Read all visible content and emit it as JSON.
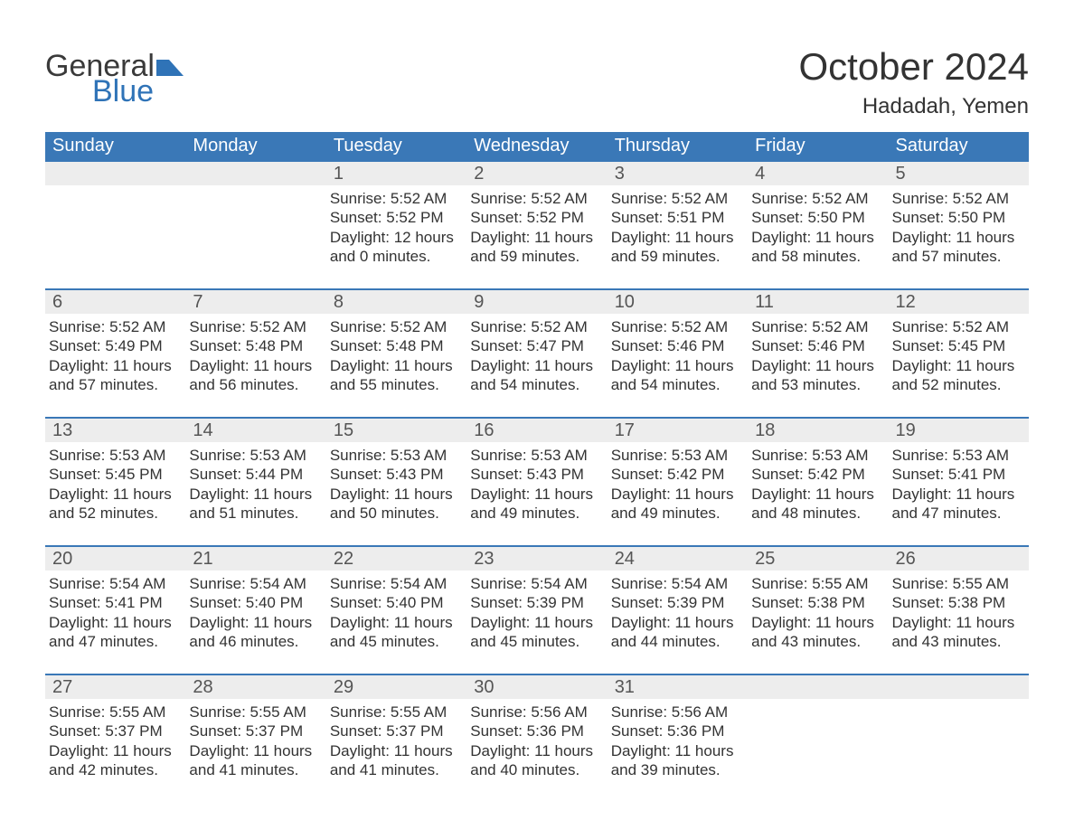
{
  "logo": {
    "text1": "General",
    "text2": "Blue",
    "flag_color": "#2f73b7"
  },
  "title": "October 2024",
  "location": "Hadadah, Yemen",
  "dow": [
    "Sunday",
    "Monday",
    "Tuesday",
    "Wednesday",
    "Thursday",
    "Friday",
    "Saturday"
  ],
  "colors": {
    "header_bg": "#3a78b7",
    "header_text": "#ffffff",
    "daynum_bg": "#ededed",
    "week_border": "#3a78b7",
    "body_text": "#333333"
  },
  "typography": {
    "title_fontsize": 42,
    "location_fontsize": 24,
    "dow_fontsize": 20,
    "daynum_fontsize": 20,
    "body_fontsize": 17
  },
  "weeks": [
    [
      {
        "n": "",
        "sunrise": "",
        "sunset": "",
        "day1": "",
        "day2": ""
      },
      {
        "n": "",
        "sunrise": "",
        "sunset": "",
        "day1": "",
        "day2": ""
      },
      {
        "n": "1",
        "sunrise": "Sunrise: 5:52 AM",
        "sunset": "Sunset: 5:52 PM",
        "day1": "Daylight: 12 hours",
        "day2": "and 0 minutes."
      },
      {
        "n": "2",
        "sunrise": "Sunrise: 5:52 AM",
        "sunset": "Sunset: 5:52 PM",
        "day1": "Daylight: 11 hours",
        "day2": "and 59 minutes."
      },
      {
        "n": "3",
        "sunrise": "Sunrise: 5:52 AM",
        "sunset": "Sunset: 5:51 PM",
        "day1": "Daylight: 11 hours",
        "day2": "and 59 minutes."
      },
      {
        "n": "4",
        "sunrise": "Sunrise: 5:52 AM",
        "sunset": "Sunset: 5:50 PM",
        "day1": "Daylight: 11 hours",
        "day2": "and 58 minutes."
      },
      {
        "n": "5",
        "sunrise": "Sunrise: 5:52 AM",
        "sunset": "Sunset: 5:50 PM",
        "day1": "Daylight: 11 hours",
        "day2": "and 57 minutes."
      }
    ],
    [
      {
        "n": "6",
        "sunrise": "Sunrise: 5:52 AM",
        "sunset": "Sunset: 5:49 PM",
        "day1": "Daylight: 11 hours",
        "day2": "and 57 minutes."
      },
      {
        "n": "7",
        "sunrise": "Sunrise: 5:52 AM",
        "sunset": "Sunset: 5:48 PM",
        "day1": "Daylight: 11 hours",
        "day2": "and 56 minutes."
      },
      {
        "n": "8",
        "sunrise": "Sunrise: 5:52 AM",
        "sunset": "Sunset: 5:48 PM",
        "day1": "Daylight: 11 hours",
        "day2": "and 55 minutes."
      },
      {
        "n": "9",
        "sunrise": "Sunrise: 5:52 AM",
        "sunset": "Sunset: 5:47 PM",
        "day1": "Daylight: 11 hours",
        "day2": "and 54 minutes."
      },
      {
        "n": "10",
        "sunrise": "Sunrise: 5:52 AM",
        "sunset": "Sunset: 5:46 PM",
        "day1": "Daylight: 11 hours",
        "day2": "and 54 minutes."
      },
      {
        "n": "11",
        "sunrise": "Sunrise: 5:52 AM",
        "sunset": "Sunset: 5:46 PM",
        "day1": "Daylight: 11 hours",
        "day2": "and 53 minutes."
      },
      {
        "n": "12",
        "sunrise": "Sunrise: 5:52 AM",
        "sunset": "Sunset: 5:45 PM",
        "day1": "Daylight: 11 hours",
        "day2": "and 52 minutes."
      }
    ],
    [
      {
        "n": "13",
        "sunrise": "Sunrise: 5:53 AM",
        "sunset": "Sunset: 5:45 PM",
        "day1": "Daylight: 11 hours",
        "day2": "and 52 minutes."
      },
      {
        "n": "14",
        "sunrise": "Sunrise: 5:53 AM",
        "sunset": "Sunset: 5:44 PM",
        "day1": "Daylight: 11 hours",
        "day2": "and 51 minutes."
      },
      {
        "n": "15",
        "sunrise": "Sunrise: 5:53 AM",
        "sunset": "Sunset: 5:43 PM",
        "day1": "Daylight: 11 hours",
        "day2": "and 50 minutes."
      },
      {
        "n": "16",
        "sunrise": "Sunrise: 5:53 AM",
        "sunset": "Sunset: 5:43 PM",
        "day1": "Daylight: 11 hours",
        "day2": "and 49 minutes."
      },
      {
        "n": "17",
        "sunrise": "Sunrise: 5:53 AM",
        "sunset": "Sunset: 5:42 PM",
        "day1": "Daylight: 11 hours",
        "day2": "and 49 minutes."
      },
      {
        "n": "18",
        "sunrise": "Sunrise: 5:53 AM",
        "sunset": "Sunset: 5:42 PM",
        "day1": "Daylight: 11 hours",
        "day2": "and 48 minutes."
      },
      {
        "n": "19",
        "sunrise": "Sunrise: 5:53 AM",
        "sunset": "Sunset: 5:41 PM",
        "day1": "Daylight: 11 hours",
        "day2": "and 47 minutes."
      }
    ],
    [
      {
        "n": "20",
        "sunrise": "Sunrise: 5:54 AM",
        "sunset": "Sunset: 5:41 PM",
        "day1": "Daylight: 11 hours",
        "day2": "and 47 minutes."
      },
      {
        "n": "21",
        "sunrise": "Sunrise: 5:54 AM",
        "sunset": "Sunset: 5:40 PM",
        "day1": "Daylight: 11 hours",
        "day2": "and 46 minutes."
      },
      {
        "n": "22",
        "sunrise": "Sunrise: 5:54 AM",
        "sunset": "Sunset: 5:40 PM",
        "day1": "Daylight: 11 hours",
        "day2": "and 45 minutes."
      },
      {
        "n": "23",
        "sunrise": "Sunrise: 5:54 AM",
        "sunset": "Sunset: 5:39 PM",
        "day1": "Daylight: 11 hours",
        "day2": "and 45 minutes."
      },
      {
        "n": "24",
        "sunrise": "Sunrise: 5:54 AM",
        "sunset": "Sunset: 5:39 PM",
        "day1": "Daylight: 11 hours",
        "day2": "and 44 minutes."
      },
      {
        "n": "25",
        "sunrise": "Sunrise: 5:55 AM",
        "sunset": "Sunset: 5:38 PM",
        "day1": "Daylight: 11 hours",
        "day2": "and 43 minutes."
      },
      {
        "n": "26",
        "sunrise": "Sunrise: 5:55 AM",
        "sunset": "Sunset: 5:38 PM",
        "day1": "Daylight: 11 hours",
        "day2": "and 43 minutes."
      }
    ],
    [
      {
        "n": "27",
        "sunrise": "Sunrise: 5:55 AM",
        "sunset": "Sunset: 5:37 PM",
        "day1": "Daylight: 11 hours",
        "day2": "and 42 minutes."
      },
      {
        "n": "28",
        "sunrise": "Sunrise: 5:55 AM",
        "sunset": "Sunset: 5:37 PM",
        "day1": "Daylight: 11 hours",
        "day2": "and 41 minutes."
      },
      {
        "n": "29",
        "sunrise": "Sunrise: 5:55 AM",
        "sunset": "Sunset: 5:37 PM",
        "day1": "Daylight: 11 hours",
        "day2": "and 41 minutes."
      },
      {
        "n": "30",
        "sunrise": "Sunrise: 5:56 AM",
        "sunset": "Sunset: 5:36 PM",
        "day1": "Daylight: 11 hours",
        "day2": "and 40 minutes."
      },
      {
        "n": "31",
        "sunrise": "Sunrise: 5:56 AM",
        "sunset": "Sunset: 5:36 PM",
        "day1": "Daylight: 11 hours",
        "day2": "and 39 minutes."
      },
      {
        "n": "",
        "sunrise": "",
        "sunset": "",
        "day1": "",
        "day2": ""
      },
      {
        "n": "",
        "sunrise": "",
        "sunset": "",
        "day1": "",
        "day2": ""
      }
    ]
  ]
}
